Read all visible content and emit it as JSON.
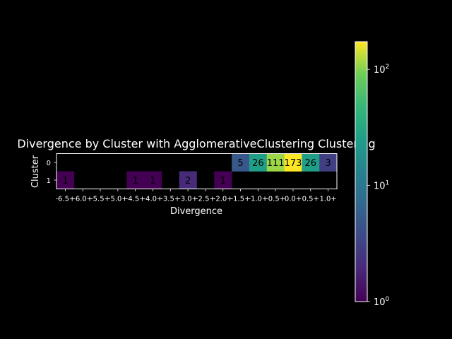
{
  "chart_data": {
    "type": "heatmap",
    "title": "Divergence by Cluster with AgglomerativeClustering Clustering",
    "xlabel": "Divergence",
    "ylabel": "Cluster",
    "x_ticks": [
      "-6.5+",
      "-6.0+",
      "-5.5+",
      "-5.0+",
      "-4.5+",
      "-4.0+",
      "-3.5+",
      "-3.0+",
      "-2.5+",
      "-2.0+",
      "-1.5+",
      "-1.0+",
      "-0.5+",
      "0.0+",
      "0.5+",
      "1.0+"
    ],
    "y_ticks": [
      "0",
      "1"
    ],
    "values": [
      [
        null,
        null,
        null,
        null,
        null,
        null,
        null,
        null,
        null,
        null,
        5,
        26,
        111,
        173,
        26,
        3
      ],
      [
        1,
        null,
        null,
        null,
        1,
        1,
        null,
        2,
        null,
        1,
        null,
        null,
        null,
        null,
        null,
        null
      ]
    ],
    "colormap": "viridis",
    "color_scale": "log",
    "color_range": [
      1,
      173
    ],
    "colorbar": {
      "tick_labels": [
        {
          "base": "10",
          "exp": "0",
          "value": 1
        },
        {
          "base": "10",
          "exp": "1",
          "value": 10
        },
        {
          "base": "10",
          "exp": "2",
          "value": 100
        }
      ]
    },
    "background": "#000000",
    "text_color": "#ffffff",
    "cell_label_color": "#000000"
  }
}
